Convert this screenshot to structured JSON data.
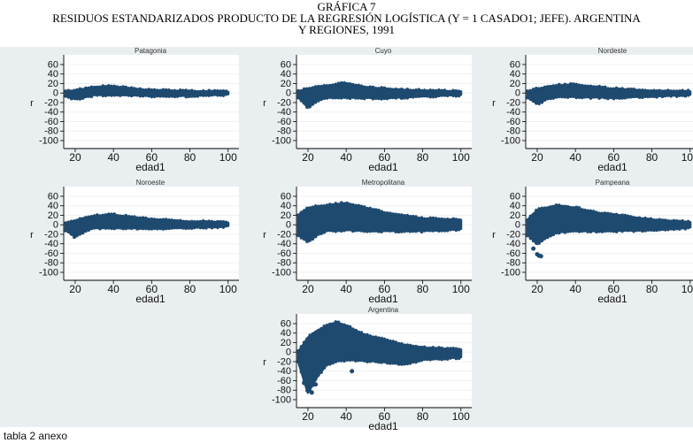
{
  "header": {
    "label": "GRÁFICA 7",
    "title_line1": "RESIDUOS ESTANDARIZADOS PRODUCTO DE LA REGRESIÓN LOGÍSTICA (Y = 1 CASADO1; JEFE). ARGENTINA",
    "title_line2": "Y REGIONES, 1991"
  },
  "footer": "tabla 2 anexo",
  "colors": {
    "points": "#1f4a70",
    "panel_bg": "#e9eef1",
    "plot_bg": "#ffffff"
  },
  "chart_data": [
    {
      "type": "scatter",
      "title": "Patagonia",
      "xlabel": "edad1",
      "ylabel": "r",
      "xticks": [
        20,
        40,
        60,
        80,
        100
      ],
      "yticks": [
        60,
        40,
        20,
        0,
        -20,
        -40,
        -60,
        -80,
        -100
      ],
      "ages": [
        15,
        20,
        25,
        30,
        40,
        50,
        60,
        80,
        100
      ],
      "upper": [
        2,
        5,
        8,
        12,
        13,
        8,
        5,
        3,
        2
      ],
      "lower": [
        -5,
        -12,
        -8,
        -3,
        -3,
        -4,
        -5,
        -5,
        -2
      ],
      "outliers": []
    },
    {
      "type": "scatter",
      "title": "Cuyo",
      "xlabel": "edad1",
      "ylabel": "r",
      "xticks": [
        20,
        40,
        60,
        80,
        100
      ],
      "yticks": [
        60,
        40,
        20,
        0,
        -20,
        -40,
        -60,
        -80,
        -100
      ],
      "ages": [
        15,
        20,
        25,
        30,
        40,
        50,
        60,
        80,
        100
      ],
      "upper": [
        3,
        8,
        12,
        15,
        20,
        12,
        8,
        4,
        3
      ],
      "lower": [
        -8,
        -30,
        -15,
        -8,
        -8,
        -9,
        -10,
        -6,
        -3
      ],
      "outliers": []
    },
    {
      "type": "scatter",
      "title": "Nordeste",
      "xlabel": "edad1",
      "ylabel": "r",
      "xticks": [
        20,
        40,
        60,
        80,
        100
      ],
      "yticks": [
        60,
        40,
        20,
        0,
        -20,
        -40,
        -60,
        -80,
        -100
      ],
      "ages": [
        15,
        20,
        25,
        30,
        40,
        50,
        60,
        80,
        100
      ],
      "upper": [
        3,
        8,
        12,
        15,
        17,
        12,
        8,
        4,
        3
      ],
      "lower": [
        -8,
        -22,
        -12,
        -7,
        -7,
        -8,
        -9,
        -6,
        -3
      ],
      "outliers": []
    },
    {
      "type": "scatter",
      "title": "Noroeste",
      "xlabel": "edad1",
      "ylabel": "r",
      "xticks": [
        20,
        40,
        60,
        80,
        100
      ],
      "yticks": [
        60,
        40,
        20,
        0,
        -20,
        -40,
        -60,
        -80,
        -100
      ],
      "ages": [
        15,
        20,
        25,
        30,
        40,
        50,
        60,
        80,
        100
      ],
      "upper": [
        3,
        8,
        14,
        18,
        20,
        15,
        10,
        6,
        4
      ],
      "lower": [
        -10,
        -25,
        -12,
        -6,
        -5,
        -6,
        -7,
        -5,
        -2
      ],
      "outliers": []
    },
    {
      "type": "scatter",
      "title": "Metropolitana",
      "xlabel": "edad1",
      "ylabel": "r",
      "xticks": [
        20,
        40,
        60,
        80,
        100
      ],
      "yticks": [
        60,
        40,
        20,
        0,
        -20,
        -40,
        -60,
        -80,
        -100
      ],
      "ages": [
        15,
        20,
        25,
        30,
        40,
        50,
        60,
        80,
        100
      ],
      "upper": [
        20,
        35,
        38,
        40,
        45,
        35,
        25,
        12,
        10
      ],
      "lower": [
        -20,
        -35,
        -20,
        -12,
        -10,
        -11,
        -12,
        -12,
        -8
      ],
      "outliers": []
    },
    {
      "type": "scatter",
      "title": "Pampeana",
      "xlabel": "edad1",
      "ylabel": "r",
      "xticks": [
        20,
        40,
        60,
        80,
        100
      ],
      "yticks": [
        60,
        40,
        20,
        0,
        -20,
        -40,
        -60,
        -80,
        -100
      ],
      "ages": [
        15,
        20,
        25,
        30,
        40,
        50,
        60,
        80,
        100
      ],
      "upper": [
        10,
        30,
        35,
        40,
        35,
        25,
        20,
        10,
        5
      ],
      "lower": [
        -20,
        -40,
        -25,
        -15,
        -12,
        -12,
        -12,
        -10,
        -5
      ],
      "outliers": [
        [
          20,
          -62
        ],
        [
          21,
          -65
        ],
        [
          22,
          -66
        ],
        [
          18,
          -50
        ]
      ]
    },
    {
      "type": "scatter",
      "title": "Argentina",
      "xlabel": "edad1",
      "ylabel": "r",
      "xticks": [
        20,
        40,
        60,
        80,
        100
      ],
      "yticks": [
        60,
        40,
        20,
        0,
        -20,
        -40,
        -60,
        -80,
        -100
      ],
      "ages": [
        15,
        20,
        25,
        30,
        35,
        40,
        50,
        60,
        70,
        80,
        100
      ],
      "upper": [
        0,
        30,
        45,
        55,
        62,
        55,
        35,
        25,
        15,
        8,
        5
      ],
      "lower": [
        -20,
        -85,
        -50,
        -25,
        -18,
        -15,
        -17,
        -20,
        -25,
        -15,
        -10
      ],
      "outliers": [
        [
          43,
          -40
        ],
        [
          18,
          -65
        ],
        [
          20,
          -78
        ],
        [
          22,
          -85
        ],
        [
          24,
          -68
        ]
      ]
    }
  ]
}
